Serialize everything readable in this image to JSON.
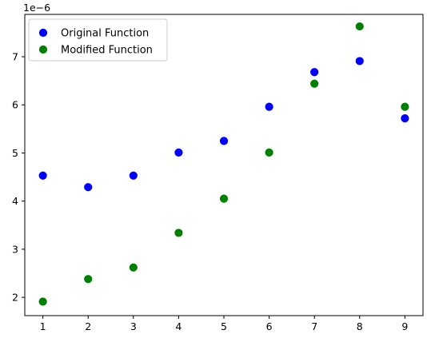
{
  "chart_data": {
    "type": "scatter",
    "title": "",
    "xlabel": "",
    "ylabel": "",
    "y_offset_label": "1e−6",
    "x_ticks": [
      "1",
      "2",
      "3",
      "4",
      "5",
      "6",
      "7",
      "8",
      "9"
    ],
    "y_ticks": [
      "2",
      "3",
      "4",
      "5",
      "6",
      "7"
    ],
    "xlim": [
      0.6,
      9.4
    ],
    "ylim": [
      1.62,
      7.88
    ],
    "grid": false,
    "legend_position": "upper-left",
    "x": [
      1,
      2,
      3,
      4,
      5,
      6,
      7,
      8,
      9
    ],
    "series": [
      {
        "name": "Original Function",
        "color": "#0000ff",
        "marker": "circle",
        "values": [
          4.53,
          4.29,
          4.53,
          5.01,
          5.25,
          5.96,
          6.68,
          6.91,
          5.72
        ]
      },
      {
        "name": "Modified Function",
        "color": "#008000",
        "marker": "circle",
        "values": [
          1.91,
          2.38,
          2.62,
          3.34,
          4.05,
          5.01,
          6.44,
          7.63,
          5.96
        ]
      }
    ]
  }
}
